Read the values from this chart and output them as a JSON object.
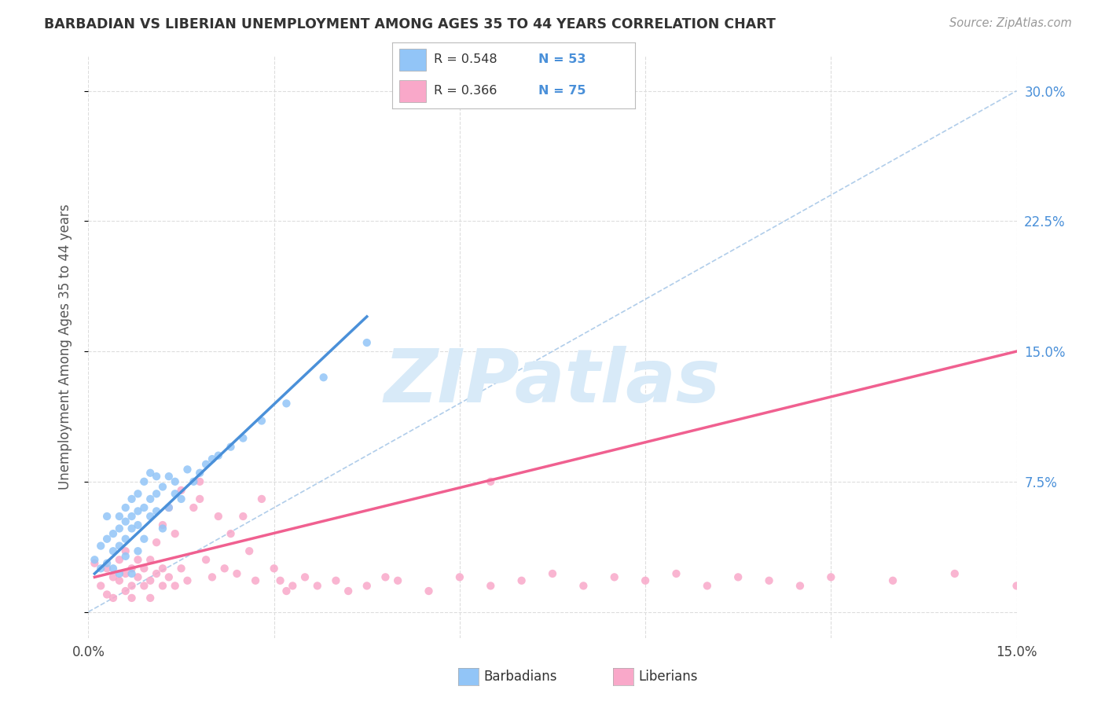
{
  "title": "BARBADIAN VS LIBERIAN UNEMPLOYMENT AMONG AGES 35 TO 44 YEARS CORRELATION CHART",
  "source": "Source: ZipAtlas.com",
  "ylabel": "Unemployment Among Ages 35 to 44 years",
  "xlim": [
    0.0,
    0.15
  ],
  "ylim": [
    -0.015,
    0.32
  ],
  "xtick_pos": [
    0.0,
    0.03,
    0.06,
    0.09,
    0.12,
    0.15
  ],
  "xtick_labels": [
    "0.0%",
    "",
    "",
    "",
    "",
    "15.0%"
  ],
  "ytick_pos": [
    0.0,
    0.075,
    0.15,
    0.225,
    0.3
  ],
  "ytick_labels_r": [
    "",
    "7.5%",
    "15.0%",
    "22.5%",
    "30.0%"
  ],
  "barbadian_R": 0.548,
  "barbadian_N": 53,
  "liberian_R": 0.366,
  "liberian_N": 75,
  "barbadian_color": "#92C5F7",
  "liberian_color": "#F9A8C9",
  "barbadian_line_color": "#4A90D9",
  "liberian_line_color": "#F06090",
  "dashed_line_color": "#A8C8E8",
  "watermark_text": "ZIPatlas",
  "watermark_color": "#D8EAF8",
  "background_color": "#FFFFFF",
  "barbadian_x": [
    0.001,
    0.002,
    0.002,
    0.003,
    0.003,
    0.003,
    0.004,
    0.004,
    0.004,
    0.005,
    0.005,
    0.005,
    0.005,
    0.006,
    0.006,
    0.006,
    0.006,
    0.007,
    0.007,
    0.007,
    0.007,
    0.008,
    0.008,
    0.008,
    0.008,
    0.009,
    0.009,
    0.009,
    0.01,
    0.01,
    0.01,
    0.011,
    0.011,
    0.011,
    0.012,
    0.012,
    0.013,
    0.013,
    0.014,
    0.014,
    0.015,
    0.016,
    0.017,
    0.018,
    0.019,
    0.02,
    0.021,
    0.023,
    0.025,
    0.028,
    0.032,
    0.038,
    0.045
  ],
  "barbadian_y": [
    0.03,
    0.038,
    0.025,
    0.042,
    0.055,
    0.028,
    0.045,
    0.035,
    0.025,
    0.048,
    0.055,
    0.038,
    0.022,
    0.052,
    0.06,
    0.042,
    0.032,
    0.055,
    0.065,
    0.048,
    0.022,
    0.058,
    0.068,
    0.05,
    0.035,
    0.06,
    0.075,
    0.042,
    0.065,
    0.055,
    0.08,
    0.068,
    0.078,
    0.058,
    0.072,
    0.048,
    0.078,
    0.06,
    0.068,
    0.075,
    0.065,
    0.082,
    0.075,
    0.08,
    0.085,
    0.088,
    0.09,
    0.095,
    0.1,
    0.11,
    0.12,
    0.135,
    0.155
  ],
  "liberian_x": [
    0.001,
    0.002,
    0.003,
    0.003,
    0.004,
    0.004,
    0.005,
    0.005,
    0.006,
    0.006,
    0.006,
    0.007,
    0.007,
    0.007,
    0.008,
    0.008,
    0.009,
    0.009,
    0.01,
    0.01,
    0.01,
    0.011,
    0.011,
    0.012,
    0.012,
    0.012,
    0.013,
    0.013,
    0.014,
    0.014,
    0.015,
    0.015,
    0.016,
    0.017,
    0.018,
    0.018,
    0.019,
    0.02,
    0.021,
    0.022,
    0.023,
    0.024,
    0.025,
    0.026,
    0.027,
    0.028,
    0.03,
    0.031,
    0.032,
    0.033,
    0.035,
    0.037,
    0.04,
    0.042,
    0.045,
    0.048,
    0.05,
    0.055,
    0.06,
    0.065,
    0.07,
    0.075,
    0.08,
    0.085,
    0.09,
    0.095,
    0.1,
    0.105,
    0.11,
    0.115,
    0.12,
    0.13,
    0.14,
    0.15,
    0.065
  ],
  "liberian_y": [
    0.028,
    0.015,
    0.025,
    0.01,
    0.02,
    0.008,
    0.018,
    0.03,
    0.022,
    0.012,
    0.035,
    0.025,
    0.015,
    0.008,
    0.02,
    0.03,
    0.015,
    0.025,
    0.018,
    0.008,
    0.03,
    0.022,
    0.04,
    0.015,
    0.025,
    0.05,
    0.02,
    0.06,
    0.015,
    0.045,
    0.025,
    0.07,
    0.018,
    0.06,
    0.065,
    0.075,
    0.03,
    0.02,
    0.055,
    0.025,
    0.045,
    0.022,
    0.055,
    0.035,
    0.018,
    0.065,
    0.025,
    0.018,
    0.012,
    0.015,
    0.02,
    0.015,
    0.018,
    0.012,
    0.015,
    0.02,
    0.018,
    0.012,
    0.02,
    0.015,
    0.018,
    0.022,
    0.015,
    0.02,
    0.018,
    0.022,
    0.015,
    0.02,
    0.018,
    0.015,
    0.02,
    0.018,
    0.022,
    0.015,
    0.075
  ],
  "barbadian_line_x": [
    0.001,
    0.045
  ],
  "barbadian_line_y": [
    0.022,
    0.17
  ],
  "liberian_line_x": [
    0.001,
    0.15
  ],
  "liberian_line_y": [
    0.02,
    0.15
  ]
}
